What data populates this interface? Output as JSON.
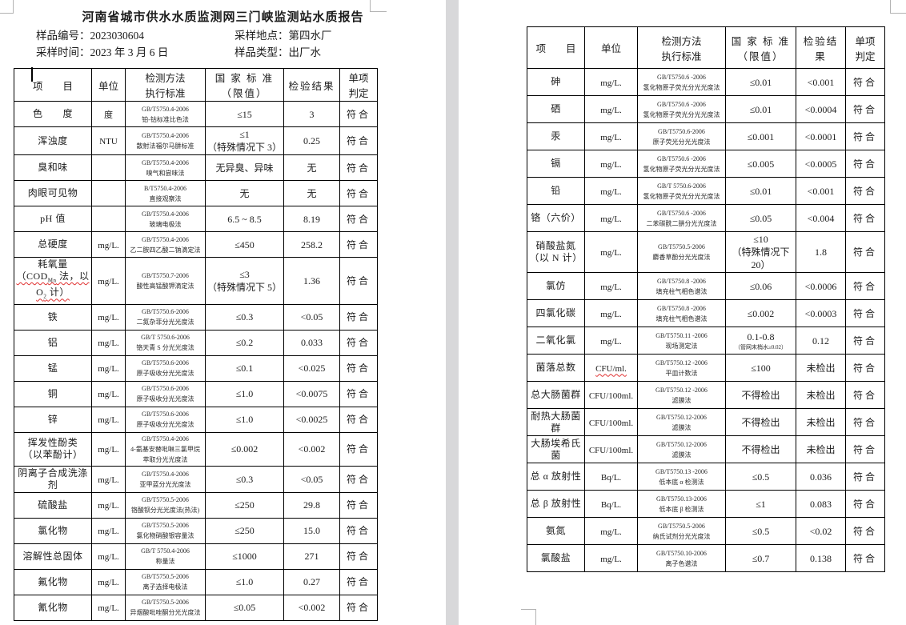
{
  "headers": {
    "item": "项　　目",
    "unit": "单位",
    "method_l1": "检测方法",
    "method_l2": "执行标准",
    "standard_l1": "国 家 标 准",
    "standard_l2": "（限值）",
    "result": "检验结果",
    "verdict_l1": "单项",
    "verdict_l2": "判定"
  },
  "page1": {
    "title": "河南省城市供水水质监测网三门峡监测站水质报告",
    "meta": {
      "sample_no_label": "样品编号：",
      "sample_no": "2023030604",
      "location_label": "采样地点：",
      "location": "第四水厂",
      "sample_time_label": "采样时间：",
      "sample_time": "2023 年 3 月 6 日",
      "type_label": "样品类型：",
      "type": "出厂水"
    },
    "rows": [
      {
        "item": "色　　度",
        "unit": "度",
        "std": "GB/T5750.4-2006",
        "method": "铂-钴标准比色法",
        "limit": "≤15",
        "result": "3",
        "verdict": "符合"
      },
      {
        "item": "浑浊度",
        "unit": "NTU",
        "std": "GB/T5750.4-2006",
        "method": "散射法福尔马肼标准",
        "limit": "≤1",
        "limit2": "（特殊情况下 3）",
        "result": "0.25",
        "verdict": "符合"
      },
      {
        "item": "臭和味",
        "unit": "",
        "std": "GB/T5750.4-2006",
        "method": "嗅气和尝味法",
        "limit": "无异臭、异味",
        "result": "无",
        "verdict": "符合"
      },
      {
        "item": "肉眼可见物",
        "unit": "",
        "std": "B/T5750.4-2006",
        "method": "直接观察法",
        "limit": "无",
        "result": "无",
        "verdict": "符合"
      },
      {
        "item": "pH 值",
        "unit": "",
        "std": "GB/T5750.4-2006",
        "method": "玻璃电极法",
        "limit": "6.5 ~ 8.5",
        "result": "8.19",
        "verdict": "符合"
      },
      {
        "item": "总硬度",
        "unit": "mg/L.",
        "std": "GB/T5750.4-2006",
        "method": "乙二胺四乙酸二钠滴定法",
        "limit": "≤450",
        "result": "258.2",
        "verdict": "符合"
      },
      {
        "item": "耗氧量",
        "item2_parts": {
          "p1": "（COD",
          "sub1": "Mn",
          "p2": " 法，以 O",
          "sub2": "2",
          "p3": " 计）"
        },
        "item2_squiggle": true,
        "unit": "mg/L.",
        "std": "GB/T5750.7-2006",
        "method": "酸性高锰酸钾滴定法",
        "limit": "≤3",
        "limit2": "（特殊情况下 5）",
        "result": "1.36",
        "verdict": "符合"
      },
      {
        "item": "铁",
        "unit": "mg/L.",
        "std": "GB/T5750.6-2006",
        "method": "二氮杂菲分光光度法",
        "limit": "≤0.3",
        "result": "<0.05",
        "verdict": "符合"
      },
      {
        "item": "铝",
        "unit": "mg/L.",
        "std": "GB/T 5750.6-2006",
        "method": "铬天青 S 分光光度法",
        "limit": "≤0.2",
        "result": "0.033",
        "verdict": "符合"
      },
      {
        "item": "锰",
        "unit": "mg/L.",
        "std": "GB/T5750.6-2006",
        "method": "原子吸收分光光度法",
        "limit": "≤0.1",
        "result": "<0.025",
        "verdict": "符合"
      },
      {
        "item": "铜",
        "unit": "mg/L.",
        "std": "GB/T5750.6-2006",
        "method": "原子吸收分光光度法",
        "limit": "≤1.0",
        "result": "<0.0075",
        "verdict": "符合"
      },
      {
        "item": "锌",
        "unit": "mg/L.",
        "std": "GB/T5750.6-2006",
        "method": "原子吸收分光光度法",
        "limit": "≤1.0",
        "result": "<0.0025",
        "verdict": "符合"
      },
      {
        "item": "挥发性酚类",
        "item2": "（以苯酚计）",
        "unit": "mg/L.",
        "std": "GB/T5750.4-2006",
        "method": "4-氨基安替吡啉三氯甲烷",
        "method2": "萃取分光光度法",
        "limit": "≤0.002",
        "result": "<0.002",
        "verdict": "符合"
      },
      {
        "item": "阴离子合成洗涤剂",
        "unit": "mg/L.",
        "std": "GB/T5750.4-2006",
        "method": "亚甲蓝分光光度法",
        "limit": "≤0.3",
        "result": "<0.05",
        "verdict": "符合"
      },
      {
        "item": "硫酸盐",
        "unit": "mg/L.",
        "std": "GB/T5750.5-2006",
        "method": "铬酸钡分光光度法(热法)",
        "limit": "≤250",
        "result": "29.8",
        "verdict": "符合"
      },
      {
        "item": "氯化物",
        "unit": "mg/L.",
        "std": "GB/T5750.5-2006",
        "method": "氯化物硝酸银容量法",
        "limit": "≤250",
        "result": "15.0",
        "verdict": "符合"
      },
      {
        "item": "溶解性总固体",
        "unit": "mg/L.",
        "std": "GB/T 5750.4-2006",
        "method": "称量法",
        "limit": "≤1000",
        "result": "271",
        "verdict": "符合"
      },
      {
        "item": "氟化物",
        "unit": "mg/L.",
        "std": "GB/T5750.5-2006",
        "method": "离子选择电极法",
        "limit": "≤1.0",
        "result": "0.27",
        "verdict": "符合"
      },
      {
        "item": "氰化物",
        "unit": "mg/L.",
        "std": "GB/T5750.5-2006",
        "method": "异烟酸吡唑酮分光光度法",
        "limit": "≤0.05",
        "result": "<0.002",
        "verdict": "符合"
      }
    ]
  },
  "page2": {
    "rows": [
      {
        "item": "砷",
        "unit": "mg/L.",
        "std": "GB/T5750.6 -2006",
        "method": "氢化物原子荧光分光光度法",
        "limit": "≤0.01",
        "result": "<0.001",
        "verdict": "符合"
      },
      {
        "item": "硒",
        "unit": "mg/L.",
        "std": "GB/T5750.6 -2006",
        "method": "氢化物原子荧光分光光度法",
        "limit": "≤0.01",
        "result": "<0.0004",
        "verdict": "符合"
      },
      {
        "item": "汞",
        "unit": "mg/L.",
        "std": "GB/T5750.6-2006",
        "method": "原子荧光分光光度法",
        "limit": "≤0.001",
        "result": "<0.0001",
        "verdict": "符合"
      },
      {
        "item": "镉",
        "unit": "mg/L.",
        "std": "GB/T5750.6 -2006",
        "method": "氢化物原子荧光分光光度法",
        "limit": "≤0.005",
        "result": "<0.0005",
        "verdict": "符合"
      },
      {
        "item": "铅",
        "unit": "mg/L.",
        "std": "GB/T 5750.6-2006",
        "method": "氢化物原子荧光分光光度法",
        "limit": "≤0.01",
        "result": "<0.001",
        "verdict": "符合"
      },
      {
        "item": "铬（六价）",
        "unit": "mg/L.",
        "std": "GB/T5750.6 -2006",
        "method": "二苯碳酰二肼分光光度法",
        "limit": "≤0.05",
        "result": "<0.004",
        "verdict": "符合"
      },
      {
        "item": "硝酸盐氮",
        "item2": "（以 N 计）",
        "unit": "mg/L.",
        "std": "GB/T5750.5-2006",
        "method": "麝香草酚分光光度法",
        "limit": "≤10",
        "limit2": "（特殊情况下 20）",
        "result": "1.8",
        "verdict": "符合"
      },
      {
        "item": "氯仿",
        "unit": "mg/L.",
        "std": "GB/T5750.8 -2006",
        "method": "填充柱气相色谱法",
        "limit": "≤0.06",
        "result": "<0.0006",
        "verdict": "符合"
      },
      {
        "item": "四氯化碳",
        "unit": "mg/L.",
        "std": "GB/T5750.8 -2006",
        "method": "填充柱气相色谱法",
        "limit": "≤0.002",
        "result": "<0.0003",
        "verdict": "符合"
      },
      {
        "item": "二氧化氯",
        "unit": "mg/L.",
        "std": "GB/T5750.11 -2006",
        "method": "现场测定法",
        "limit": "0.1-0.8",
        "limit2": "（管网末梢水≥0.02）",
        "limit2_small": true,
        "result": "0.12",
        "verdict": "符合"
      },
      {
        "item": "菌落总数",
        "unit": "CFU/ml.",
        "unit_squiggle": true,
        "std": "GB/T5750.12 -2006",
        "method": "平皿计数法",
        "limit": "≤100",
        "result": "未检出",
        "verdict": "符合"
      },
      {
        "item": "总大肠菌群",
        "unit": "CFU/100ml.",
        "std": "GB/T5750.12 -2006",
        "method": "滤膜法",
        "limit": "不得检出",
        "result": "未检出",
        "verdict": "符合"
      },
      {
        "item": "耐热大肠菌群",
        "unit": "CFU/100ml.",
        "std": "GB/T5750.12-2006",
        "method": "滤膜法",
        "limit": "不得检出",
        "result": "未检出",
        "verdict": "符合"
      },
      {
        "item": "大肠埃希氏菌",
        "unit": "CFU/100ml.",
        "std": "GB/T5750.12-2006",
        "method": "滤膜法",
        "limit": "不得检出",
        "result": "未检出",
        "verdict": "符合"
      },
      {
        "item": "总 α 放射性",
        "unit": "Bq/L.",
        "std": "GB/T5750.13 -2006",
        "method": "低本底 α 检测法",
        "limit": "≤0.5",
        "result": "0.036",
        "verdict": "符合"
      },
      {
        "item": "总 β 放射性",
        "unit": "Bq/L.",
        "std": "GB/T5750.13-2006",
        "method": "低本底 β 检测法",
        "limit": "≤1",
        "result": "0.083",
        "verdict": "符合"
      },
      {
        "item": "氨氮",
        "unit": "mg/L.",
        "std": "GB/T5750.5-2006",
        "method": "纳氏试剂分光光度法",
        "limit": "≤0.5",
        "result": "<0.02",
        "verdict": "符合"
      },
      {
        "item": "氯酸盐",
        "unit": "mg/L.",
        "std": "GB/T5750.10-2006",
        "method": "离子色谱法",
        "limit": "≤0.7",
        "result": "0.138",
        "verdict": "符合"
      }
    ]
  }
}
